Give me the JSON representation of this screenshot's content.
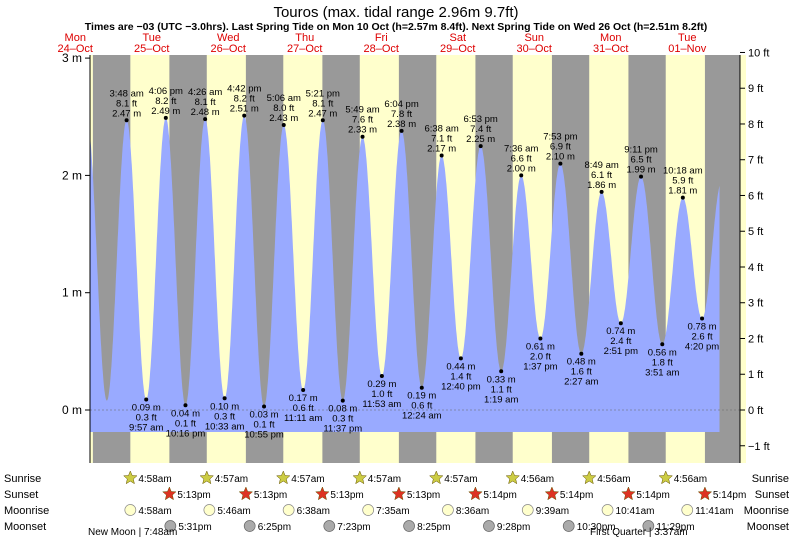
{
  "title": "Touros (max. tidal range 2.96m 9.7ft)",
  "subtitle": "Times are −03 (UTC −3.0hrs). Last Spring Tide on Mon 10 Oct (h=2.57m 8.4ft). Next Spring Tide on Wed 26 Oct (h=2.51m 8.2ft)",
  "colors": {
    "day": "#ffffcc",
    "night": "#999999",
    "water": "#99aaff",
    "date_text": "#dd0000",
    "sun": "#cccc44",
    "sunset": "#dd3322",
    "moonrise": "#ffffcc",
    "moonset": "#aaaaaa"
  },
  "chart_data": {
    "type": "area",
    "ylim": [
      -0.45,
      3.05
    ],
    "y_left_ticks": [
      {
        "v": 3,
        "label": "3 m"
      },
      {
        "v": 2,
        "label": "2 m"
      },
      {
        "v": 1,
        "label": "1 m"
      },
      {
        "v": 0,
        "label": "0 m"
      }
    ],
    "y_right_ticks": [
      {
        "v": 10,
        "label": "10 ft"
      },
      {
        "v": 9,
        "label": "9 ft"
      },
      {
        "v": 8,
        "label": "8 ft"
      },
      {
        "v": 7,
        "label": "7 ft"
      },
      {
        "v": 6,
        "label": "6 ft"
      },
      {
        "v": 5,
        "label": "5 ft"
      },
      {
        "v": 4,
        "label": "4 ft"
      },
      {
        "v": 3,
        "label": "3 ft"
      },
      {
        "v": 2,
        "label": "2 ft"
      },
      {
        "v": 1,
        "label": "1 ft"
      },
      {
        "v": 0,
        "label": "0 ft"
      },
      {
        "v": -1,
        "label": "−1 ft"
      }
    ],
    "days": [
      {
        "dow": "Mon",
        "date": "24–Oct"
      },
      {
        "dow": "Tue",
        "date": "25–Oct"
      },
      {
        "dow": "Wed",
        "date": "26–Oct"
      },
      {
        "dow": "Thu",
        "date": "27–Oct"
      },
      {
        "dow": "Fri",
        "date": "28–Oct"
      },
      {
        "dow": "Sat",
        "date": "29–Oct"
      },
      {
        "dow": "Sun",
        "date": "30–Oct"
      },
      {
        "dow": "Mon",
        "date": "31–Oct"
      },
      {
        "dow": "Tue",
        "date": "01–Nov"
      }
    ],
    "tides": [
      {
        "type": "high",
        "time": "3:48 am",
        "ft": "8.1 ft",
        "m": 2.47,
        "label_m": "2.47 m"
      },
      {
        "type": "low",
        "time": "9:57 am",
        "ft": "0.3 ft",
        "m": 0.09,
        "label_m": "0.09 m"
      },
      {
        "type": "high",
        "time": "4:06 pm",
        "ft": "8.2 ft",
        "m": 2.49,
        "label_m": "2.49 m"
      },
      {
        "type": "low",
        "time": "10:16 pm",
        "ft": "0.1 ft",
        "m": 0.04,
        "label_m": "0.04 m"
      },
      {
        "type": "high",
        "time": "4:26 am",
        "ft": "8.1 ft",
        "m": 2.48,
        "label_m": "2.48 m"
      },
      {
        "type": "low",
        "time": "10:33 am",
        "ft": "0.3 ft",
        "m": 0.1,
        "label_m": "0.10 m"
      },
      {
        "type": "high",
        "time": "4:42 pm",
        "ft": "8.2 ft",
        "m": 2.51,
        "label_m": "2.51 m"
      },
      {
        "type": "low",
        "time": "10:55 pm",
        "ft": "0.1 ft",
        "m": 0.03,
        "label_m": "0.03 m"
      },
      {
        "type": "high",
        "time": "5:06 am",
        "ft": "8.0 ft",
        "m": 2.43,
        "label_m": "2.43 m"
      },
      {
        "type": "low",
        "time": "11:11 am",
        "ft": "0.6 ft",
        "m": 0.17,
        "label_m": "0.17 m"
      },
      {
        "type": "high",
        "time": "5:21 pm",
        "ft": "8.1 ft",
        "m": 2.47,
        "label_m": "2.47 m"
      },
      {
        "type": "low",
        "time": "11:37 pm",
        "ft": "0.3 ft",
        "m": 0.08,
        "label_m": "0.08 m"
      },
      {
        "type": "high",
        "time": "5:49 am",
        "ft": "7.6 ft",
        "m": 2.33,
        "label_m": "2.33 m"
      },
      {
        "type": "low",
        "time": "11:53 am",
        "ft": "1.0 ft",
        "m": 0.29,
        "label_m": "0.29 m"
      },
      {
        "type": "high",
        "time": "6:04 pm",
        "ft": "7.8 ft",
        "m": 2.38,
        "label_m": "2.38 m"
      },
      {
        "type": "low",
        "time": "12:24 am",
        "ft": "0.6 ft",
        "m": 0.19,
        "label_m": "0.19 m"
      },
      {
        "type": "high",
        "time": "6:38 am",
        "ft": "7.1 ft",
        "m": 2.17,
        "label_m": "2.17 m"
      },
      {
        "type": "low",
        "time": "12:40 pm",
        "ft": "1.4 ft",
        "m": 0.44,
        "label_m": "0.44 m"
      },
      {
        "type": "high",
        "time": "6:53 pm",
        "ft": "7.4 ft",
        "m": 2.25,
        "label_m": "2.25 m"
      },
      {
        "type": "low",
        "time": "1:19 am",
        "ft": "1.1 ft",
        "m": 0.33,
        "label_m": "0.33 m"
      },
      {
        "type": "high",
        "time": "7:36 am",
        "ft": "6.6 ft",
        "m": 2.0,
        "label_m": "2.00 m"
      },
      {
        "type": "low",
        "time": "1:37 pm",
        "ft": "2.0 ft",
        "m": 0.61,
        "label_m": "0.61 m"
      },
      {
        "type": "high",
        "time": "7:53 pm",
        "ft": "6.9 ft",
        "m": 2.1,
        "label_m": "2.10 m"
      },
      {
        "type": "low",
        "time": "2:27 am",
        "ft": "1.6 ft",
        "m": 0.48,
        "label_m": "0.48 m"
      },
      {
        "type": "high",
        "time": "8:49 am",
        "ft": "6.1 ft",
        "m": 1.86,
        "label_m": "1.86 m"
      },
      {
        "type": "low",
        "time": "2:51 pm",
        "ft": "2.4 ft",
        "m": 0.74,
        "label_m": "0.74 m"
      },
      {
        "type": "high",
        "time": "9:11 pm",
        "ft": "6.5 ft",
        "m": 1.99,
        "label_m": "1.99 m"
      },
      {
        "type": "low",
        "time": "3:51 am",
        "ft": "1.8 ft",
        "m": 0.56,
        "label_m": "0.56 m"
      },
      {
        "type": "high",
        "time": "10:18 am",
        "ft": "5.9 ft",
        "m": 1.81,
        "label_m": "1.81 m"
      },
      {
        "type": "low",
        "time": "4:20 pm",
        "ft": "2.6 ft",
        "m": 0.78,
        "label_m": "0.78 m"
      }
    ],
    "sunrise": [
      "4:58am",
      "4:57am",
      "4:57am",
      "4:57am",
      "4:57am",
      "4:56am",
      "4:56am",
      "4:56am"
    ],
    "sunset": [
      "5:13pm",
      "5:13pm",
      "5:13pm",
      "5:13pm",
      "5:14pm",
      "5:14pm",
      "5:14pm",
      "5:14pm"
    ],
    "moonrise": [
      "4:58am",
      "5:46am",
      "6:38am",
      "7:35am",
      "8:36am",
      "9:39am",
      "10:41am",
      "11:41am"
    ],
    "moonset": [
      "5:31pm",
      "6:25pm",
      "7:23pm",
      "8:25pm",
      "9:28pm",
      "10:30pm",
      "11:29pm"
    ],
    "row_labels": {
      "sunrise": "Sunrise",
      "sunset": "Sunset",
      "moonrise": "Moonrise",
      "moonset": "Moonset"
    },
    "moon_phases": [
      "New Moon | 7:48am",
      "First Quarter | 3:37am"
    ]
  }
}
